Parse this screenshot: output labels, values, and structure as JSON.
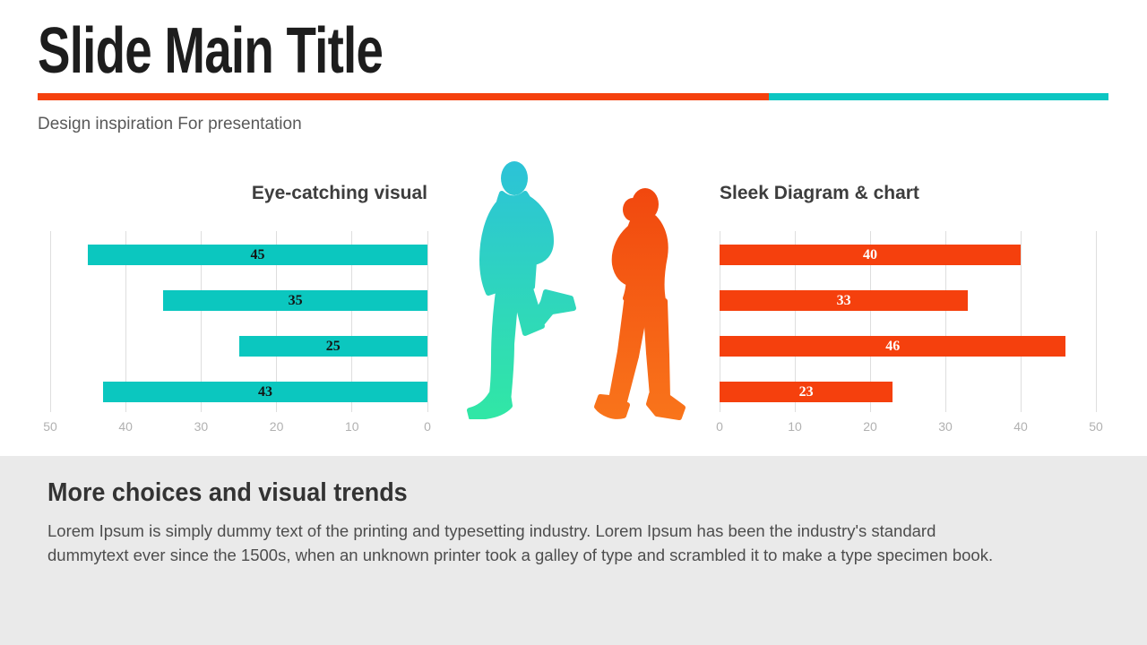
{
  "slide": {
    "title": "Slide Main Title",
    "subtitle": "Design inspiration For presentation"
  },
  "divider": {
    "orange": "#f5410e",
    "teal": "#0cc6c2"
  },
  "chart_data": [
    {
      "type": "bar",
      "orientation": "horizontal",
      "title": "Eye-catching visual",
      "values": [
        45,
        35,
        25,
        43
      ],
      "xlim": [
        0,
        50
      ],
      "ticks": [
        50,
        40,
        30,
        20,
        10,
        0
      ],
      "axis_reversed": true,
      "bar_color": "#0bc7bf",
      "value_label_color": "#141414",
      "grid": true,
      "legend": false
    },
    {
      "type": "bar",
      "orientation": "horizontal",
      "title": "Sleek Diagram & chart",
      "values": [
        40,
        33,
        46,
        23
      ],
      "xlim": [
        0,
        50
      ],
      "ticks": [
        0,
        10,
        20,
        30,
        40,
        50
      ],
      "axis_reversed": false,
      "bar_color": "#f5400d",
      "value_label_color": "#ffffff",
      "grid": true,
      "legend": false
    }
  ],
  "illustration": {
    "male_runner": "male-runner-silhouette",
    "female_runner": "female-runner-silhouette",
    "male_gradient_top": "#2cc2d8",
    "male_gradient_bottom": "#31e7a5",
    "female_gradient_top": "#f1470e",
    "female_gradient_bottom": "#f9751b"
  },
  "footer": {
    "heading": "More choices and visual trends",
    "body": "Lorem Ipsum is simply dummy text of the printing and typesetting industry. Lorem Ipsum has been the industry's standard dummytext ever since the 1500s, when an unknown printer took a galley of type and scrambled it to make a type specimen book."
  }
}
